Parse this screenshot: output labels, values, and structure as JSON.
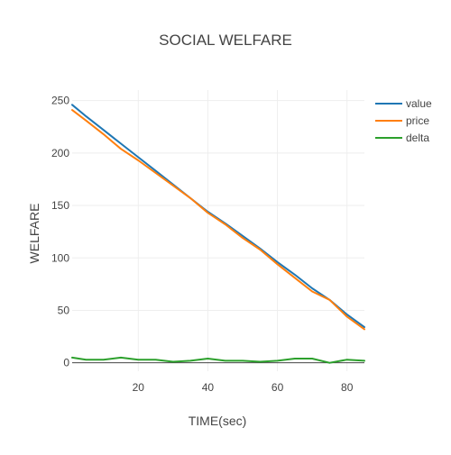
{
  "chart_data": {
    "type": "line",
    "title": "SOCIAL WELFARE",
    "xlabel": "TIME(sec)",
    "ylabel": "WELFARE",
    "xlim": [
      1,
      85
    ],
    "ylim": [
      -8,
      260
    ],
    "x_ticks": [
      20,
      40,
      60,
      80
    ],
    "y_ticks": [
      0,
      50,
      100,
      150,
      200,
      250
    ],
    "grid": true,
    "legend_position": "top-right",
    "x": [
      1,
      5,
      10,
      15,
      20,
      25,
      30,
      35,
      40,
      45,
      50,
      55,
      60,
      65,
      70,
      75,
      80,
      85
    ],
    "series": [
      {
        "name": "value",
        "color": "#1f77b4",
        "values": [
          246,
          235,
          222,
          209,
          196,
          183,
          170,
          157,
          144,
          133,
          121,
          109,
          96,
          84,
          71,
          60,
          46,
          34
        ]
      },
      {
        "name": "price",
        "color": "#ff7f0e",
        "values": [
          241,
          231,
          218,
          204,
          193,
          181,
          169,
          157,
          143,
          132,
          119,
          108,
          94,
          81,
          68,
          60,
          44,
          32
        ]
      },
      {
        "name": "delta",
        "color": "#2ca02c",
        "values": [
          5,
          3,
          3,
          5,
          3,
          3,
          1,
          2,
          4,
          2,
          2,
          1,
          2,
          4,
          4,
          0,
          3,
          2
        ]
      }
    ]
  }
}
